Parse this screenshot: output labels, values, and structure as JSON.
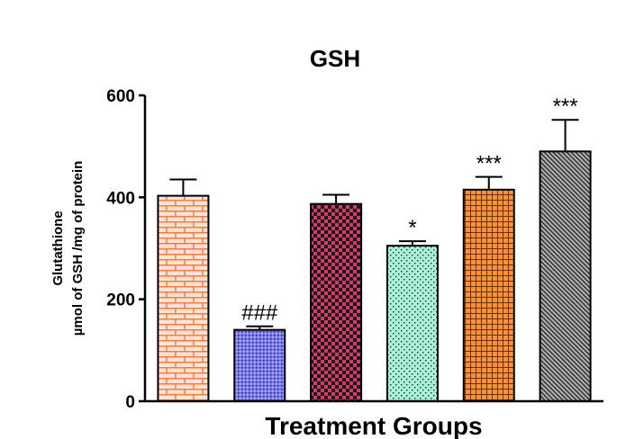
{
  "chart_data": {
    "type": "bar",
    "title": "GSH",
    "xlabel": "Treatment Groups",
    "ylabel_line1": "Glutathione",
    "ylabel_line2": "µmol of GSH /mg of protein",
    "ylim": [
      0,
      600
    ],
    "yticks": [
      0,
      200,
      400,
      600
    ],
    "ytick_labels": [
      "0",
      "200",
      "400",
      "600"
    ],
    "categories": [
      "",
      "",
      "",
      "",
      "",
      ""
    ],
    "values": [
      403,
      140,
      387,
      305,
      415,
      490
    ],
    "errors": [
      32,
      7,
      18,
      9,
      25,
      62
    ],
    "annotations": [
      "",
      "###",
      "",
      "*",
      "***",
      "***"
    ],
    "colors": [
      "#f47c42",
      "#7b7bf0",
      "#d63a68",
      "#9ff0d2",
      "#f7923a",
      "#9a9a9a"
    ],
    "patterns": [
      "brick",
      "dots-dense",
      "checker",
      "dots-sparse",
      "grid",
      "diagonal"
    ],
    "grid": false
  }
}
